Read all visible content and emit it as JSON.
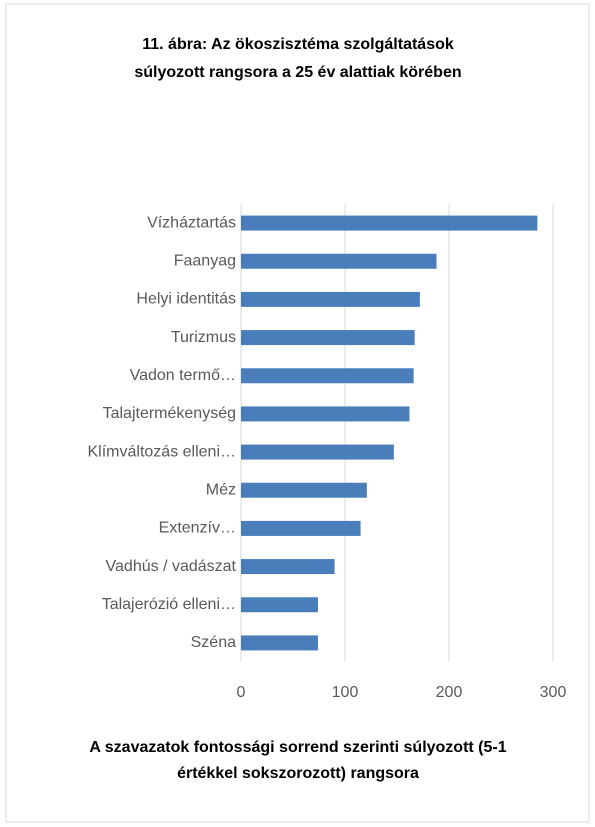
{
  "chart_data": {
    "type": "barh",
    "title": "11. ábra: Az ökoszisztéma szolgáltatások",
    "subtitle": "súlyozott rangsora a 25 év alattiak körében",
    "xlabel": "A szavazatok fontossági sorrend szerinti súlyozott (5-1",
    "xlabel2": "értékkel sokszorozott) rangsora",
    "categories": [
      "Vízháztartás",
      "Faanyag",
      "Helyi identitás",
      "Turizmus",
      "Vadon termő…",
      "Talajtermékenység",
      "Klímváltozás elleni…",
      "Méz",
      "Extenzív…",
      "Vadhús / vadászat",
      "Talajerózió elleni…",
      "Széna"
    ],
    "values": [
      285,
      188,
      172,
      167,
      166,
      162,
      147,
      121,
      115,
      90,
      74,
      74
    ],
    "color": "#4a7ebb",
    "xlim": [
      0,
      300
    ],
    "xticks": [
      0,
      100,
      200,
      300
    ],
    "grid": true
  }
}
